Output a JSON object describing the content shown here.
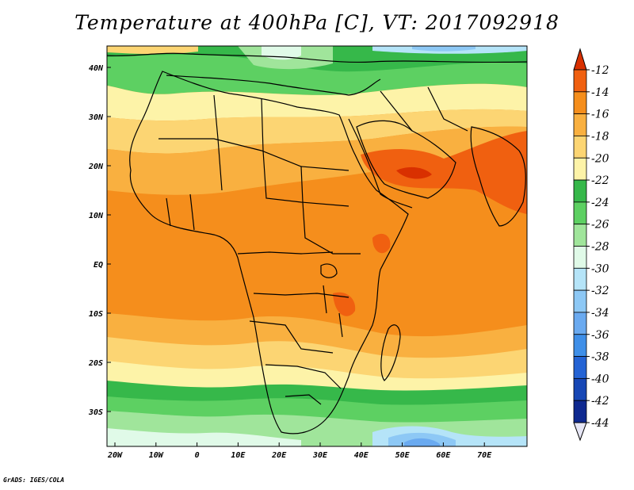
{
  "title": "Temperature at 400hPa [C], VT: 2017092918",
  "credit": "GrADS: IGES/COLA",
  "lon_ticks": [
    "20W",
    "10W",
    "0",
    "10E",
    "20E",
    "30E",
    "40E",
    "50E",
    "60E",
    "70E"
  ],
  "lat_ticks": [
    "40N",
    "30N",
    "20N",
    "10N",
    "EQ",
    "10S",
    "20S",
    "30S"
  ],
  "colorbar": {
    "labels": [
      "-12",
      "-14",
      "-16",
      "-18",
      "-20",
      "-22",
      "-24",
      "-26",
      "-28",
      "-30",
      "-32",
      "-34",
      "-36",
      "-38",
      "-40",
      "-42",
      "-44"
    ],
    "colors": [
      "#d93000",
      "#f06010",
      "#f58e1c",
      "#f9b040",
      "#fcd573",
      "#fdf3a8",
      "#36b84a",
      "#5dd062",
      "#a0e59b",
      "#e0fae8",
      "#b5e4f8",
      "#8dc8f5",
      "#6aaaf0",
      "#3f8fe8",
      "#2463d4",
      "#1747b5",
      "#0f2990",
      "#0a1570"
    ]
  }
}
